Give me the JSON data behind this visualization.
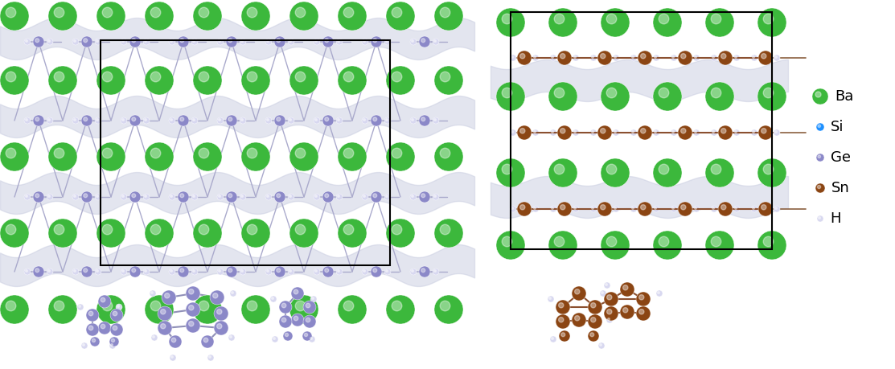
{
  "title": "",
  "background_color": "#ffffff",
  "colors": {
    "Ba": "#3cb83c",
    "Si": "#1e90ff",
    "Ge": "#8b88c8",
    "Sn": "#8B4513",
    "H": "#d8d8f0",
    "bond_ge": "#9090b8",
    "bond_sn": "#8B5A2B",
    "shading": "#c8c8dc"
  },
  "legend": {
    "Ba": {
      "color": "#3cb83c",
      "size": 14
    },
    "Si": {
      "color": "#1e90ff",
      "size": 6
    },
    "Ge": {
      "color": "#8b88c8",
      "size": 6
    },
    "Sn": {
      "color": "#8B4513",
      "size": 8
    },
    "H": {
      "color": "#d0d0e8",
      "size": 5
    }
  },
  "figsize": [
    11.13,
    4.59
  ],
  "dpi": 100
}
